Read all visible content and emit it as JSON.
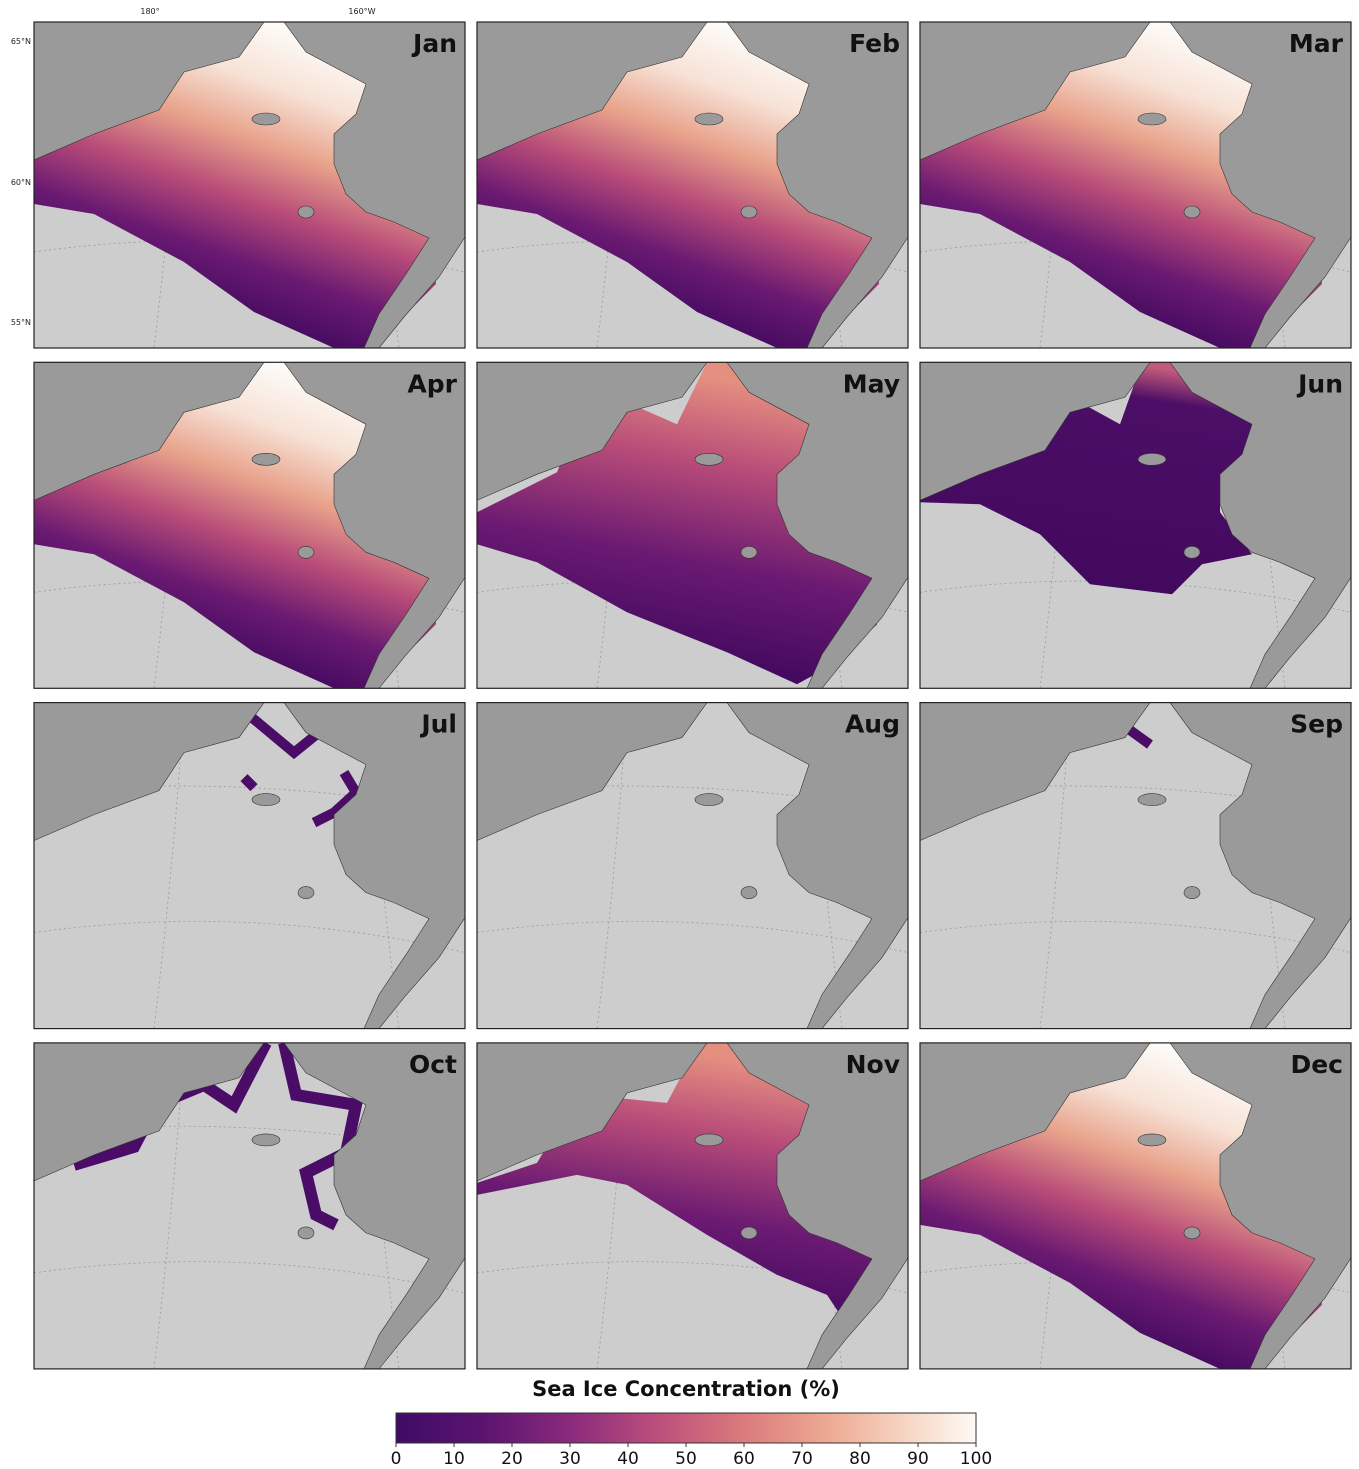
{
  "panels": [
    {
      "label": "Jan"
    },
    {
      "label": "Feb"
    },
    {
      "label": "Mar"
    },
    {
      "label": "Apr"
    },
    {
      "label": "May"
    },
    {
      "label": "Jun"
    },
    {
      "label": "Jul"
    },
    {
      "label": "Aug"
    },
    {
      "label": "Sep"
    },
    {
      "label": "Oct"
    },
    {
      "label": "Nov"
    },
    {
      "label": "Dec"
    }
  ],
  "axes": {
    "x_labels": [
      "180°",
      "160°W"
    ],
    "y_labels": [
      "65°N",
      "60°N",
      "55°N"
    ]
  },
  "colorbar": {
    "title": "Sea Ice Concentration (%)",
    "lim": [
      0,
      100
    ],
    "ticks": [
      0,
      10,
      20,
      30,
      40,
      50,
      60,
      70,
      80,
      90,
      100
    ]
  }
}
